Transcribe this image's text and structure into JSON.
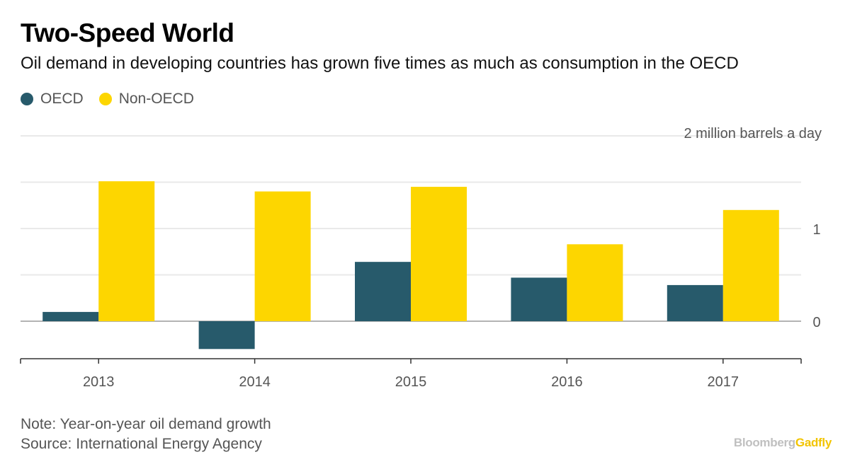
{
  "header": {
    "title": "Two-Speed World",
    "subtitle": "Oil demand in developing countries has grown five times as much as consumption in the OECD"
  },
  "legend": [
    {
      "label": "OECD",
      "color": "#275a6b"
    },
    {
      "label": "Non-OECD",
      "color": "#fdd600"
    }
  ],
  "chart_data": {
    "type": "bar",
    "categories": [
      "2013",
      "2014",
      "2015",
      "2016",
      "2017"
    ],
    "series": [
      {
        "name": "OECD",
        "color": "#275a6b",
        "values": [
          0.1,
          -0.3,
          0.64,
          0.47,
          0.39
        ]
      },
      {
        "name": "Non-OECD",
        "color": "#fdd600",
        "values": [
          1.51,
          1.4,
          1.45,
          0.83,
          1.2
        ]
      }
    ],
    "ylim": [
      -0.4,
      2.0
    ],
    "y_ticks": [
      {
        "value": 0,
        "label": "0"
      },
      {
        "value": 0.5,
        "label": ""
      },
      {
        "value": 1,
        "label": "1"
      },
      {
        "value": 1.5,
        "label": ""
      },
      {
        "value": 2,
        "label": "2 million barrels a day"
      }
    ],
    "ylabel": "million barrels a day",
    "grid": true,
    "legend_position": "top-left"
  },
  "footer": {
    "note": "Note: Year-on-year oil demand growth",
    "source": "Source: International Energy Agency"
  },
  "logo": {
    "part1": "Bloomberg",
    "part2": "Gadfly"
  }
}
